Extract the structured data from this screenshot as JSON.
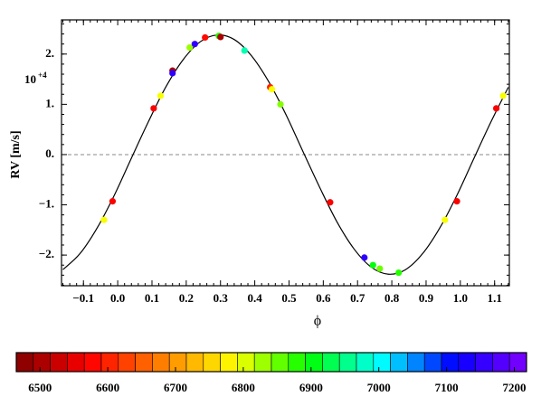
{
  "chart_data": {
    "type": "scatter",
    "xlabel": "ϕ",
    "ylabel": "RV [m/s]",
    "y_multiplier_base": "10",
    "y_multiplier_exponent": "+4",
    "xlim": [
      -0.164,
      1.143
    ],
    "ylim": [
      -2.61,
      2.68
    ],
    "xticks": [
      {
        "value": -0.1,
        "label": "−0.1"
      },
      {
        "value": 0,
        "label": "0.0"
      },
      0.1,
      0.2,
      0.3,
      0.4,
      0.5,
      0.6,
      0.7,
      0.8,
      0.9,
      {
        "value": 1,
        "label": "1.0"
      },
      1.1
    ],
    "yticks": [
      {
        "value": -2,
        "label": "−2."
      },
      {
        "value": -1,
        "label": "−1."
      },
      {
        "value": 0,
        "label": "0."
      },
      {
        "value": 1,
        "label": "1."
      },
      {
        "value": 2,
        "label": "2."
      }
    ],
    "hline": 0,
    "model": {
      "color": "#000000",
      "x": [
        -0.16,
        -0.11,
        -0.06,
        -0.01,
        0.04,
        0.09,
        0.14,
        0.19,
        0.24,
        0.29,
        0.34,
        0.39,
        0.44,
        0.49,
        0.54,
        0.59,
        0.64,
        0.69,
        0.74,
        0.79,
        0.84,
        0.89,
        0.94,
        0.99,
        1.04,
        1.09,
        1.14
      ],
      "values": [
        -2.29,
        -1.97,
        -1.46,
        -0.81,
        -0.07,
        0.66,
        1.34,
        1.88,
        2.24,
        2.38,
        2.29,
        1.97,
        1.46,
        0.81,
        0.07,
        -0.66,
        -1.34,
        -1.88,
        -2.24,
        -2.38,
        -2.29,
        -1.97,
        -1.46,
        -0.81,
        -0.07,
        0.66,
        1.34
      ]
    },
    "series": [
      {
        "x": [
          -0.04,
          -0.015,
          0.105,
          0.125,
          0.16,
          0.16,
          0.21,
          0.225,
          0.255,
          0.295,
          0.3,
          0.37,
          0.445,
          0.45,
          0.475,
          0.62,
          0.72,
          0.745,
          0.765,
          0.82,
          0.955,
          0.99,
          1.105,
          1.125
        ],
        "values": [
          -1.3,
          -0.93,
          0.92,
          1.17,
          1.67,
          1.62,
          2.13,
          2.2,
          2.33,
          2.36,
          2.34,
          2.07,
          1.34,
          1.3,
          1.0,
          -0.95,
          -2.05,
          -2.2,
          -2.27,
          -2.35,
          -1.3,
          -0.93,
          0.92,
          1.17
        ],
        "c": [
          6790,
          6570,
          6570,
          6790,
          6500,
          7150,
          6830,
          7150,
          6580,
          6880,
          6500,
          6970,
          6600,
          6790,
          6840,
          6570,
          7150,
          6900,
          6850,
          6880,
          6790,
          6570,
          6570,
          6790
        ]
      }
    ],
    "colorbar": {
      "colormap": [
        "#800000",
        "#ff0000",
        "#ff8000",
        "#ffff00",
        "#00ff00",
        "#00ffff",
        "#0000ff",
        "#8000ff"
      ],
      "clim": [
        6465,
        7218
      ],
      "ticks": [
        6500,
        6600,
        6700,
        6800,
        6900,
        7000,
        7100,
        7200
      ]
    }
  }
}
